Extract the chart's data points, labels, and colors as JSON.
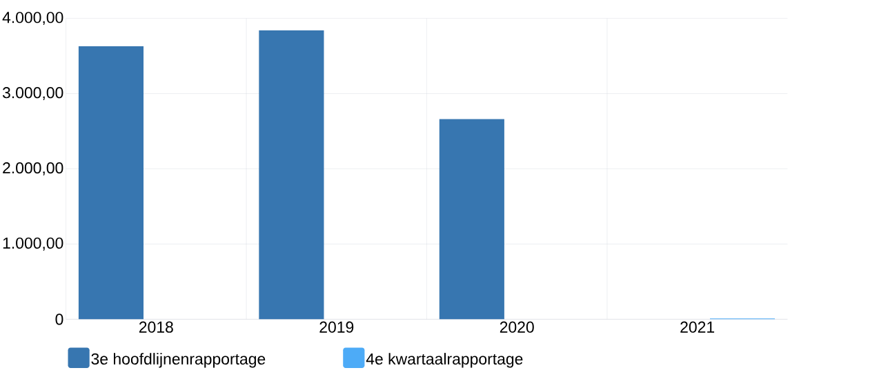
{
  "chart_data": {
    "type": "bar",
    "categories": [
      "2018",
      "2019",
      "2020",
      "2021"
    ],
    "series": [
      {
        "name": "3e hoofdlijnenrapportage",
        "color": "#3776b0",
        "values": [
          3630,
          3840,
          2660,
          null
        ]
      },
      {
        "name": "4e kwartaalrapportage",
        "color": "#4dabf7",
        "values": [
          null,
          null,
          null,
          10
        ]
      }
    ],
    "ylim": [
      0,
      4000
    ],
    "yticks": [
      0,
      {
        "value": 1000,
        "label": "1.000,00"
      },
      {
        "value": 2000,
        "label": "2.000,00"
      },
      {
        "value": 3000,
        "label": "3.000,00"
      },
      {
        "value": 4000,
        "label": "4.000,00"
      }
    ],
    "grid": true,
    "legend": "bottom"
  }
}
